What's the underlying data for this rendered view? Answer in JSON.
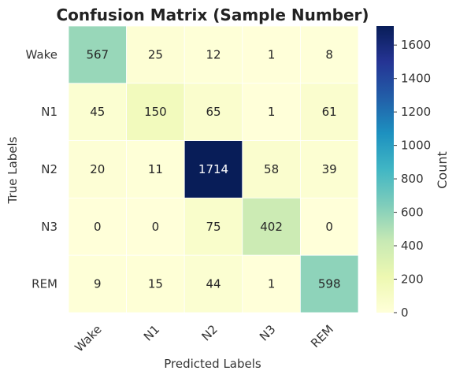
{
  "chart_data": {
    "type": "heatmap",
    "title": "Confusion Matrix (Sample Number)",
    "xlabel": "Predicted Labels",
    "ylabel": "True Labels",
    "x_categories": [
      "Wake",
      "N1",
      "N2",
      "N3",
      "REM"
    ],
    "y_categories": [
      "Wake",
      "N1",
      "N2",
      "N3",
      "REM"
    ],
    "values": [
      [
        567,
        25,
        12,
        1,
        8
      ],
      [
        45,
        150,
        65,
        1,
        61
      ],
      [
        20,
        11,
        1714,
        58,
        39
      ],
      [
        0,
        0,
        75,
        402,
        0
      ],
      [
        9,
        15,
        44,
        1,
        598
      ]
    ],
    "colorbar": {
      "label": "Count",
      "ticks": [
        "0",
        "200",
        "400",
        "600",
        "800",
        "1000",
        "1200",
        "1400",
        "1600"
      ],
      "range": [
        0,
        1714
      ],
      "colormap": "YlGnBu"
    }
  }
}
